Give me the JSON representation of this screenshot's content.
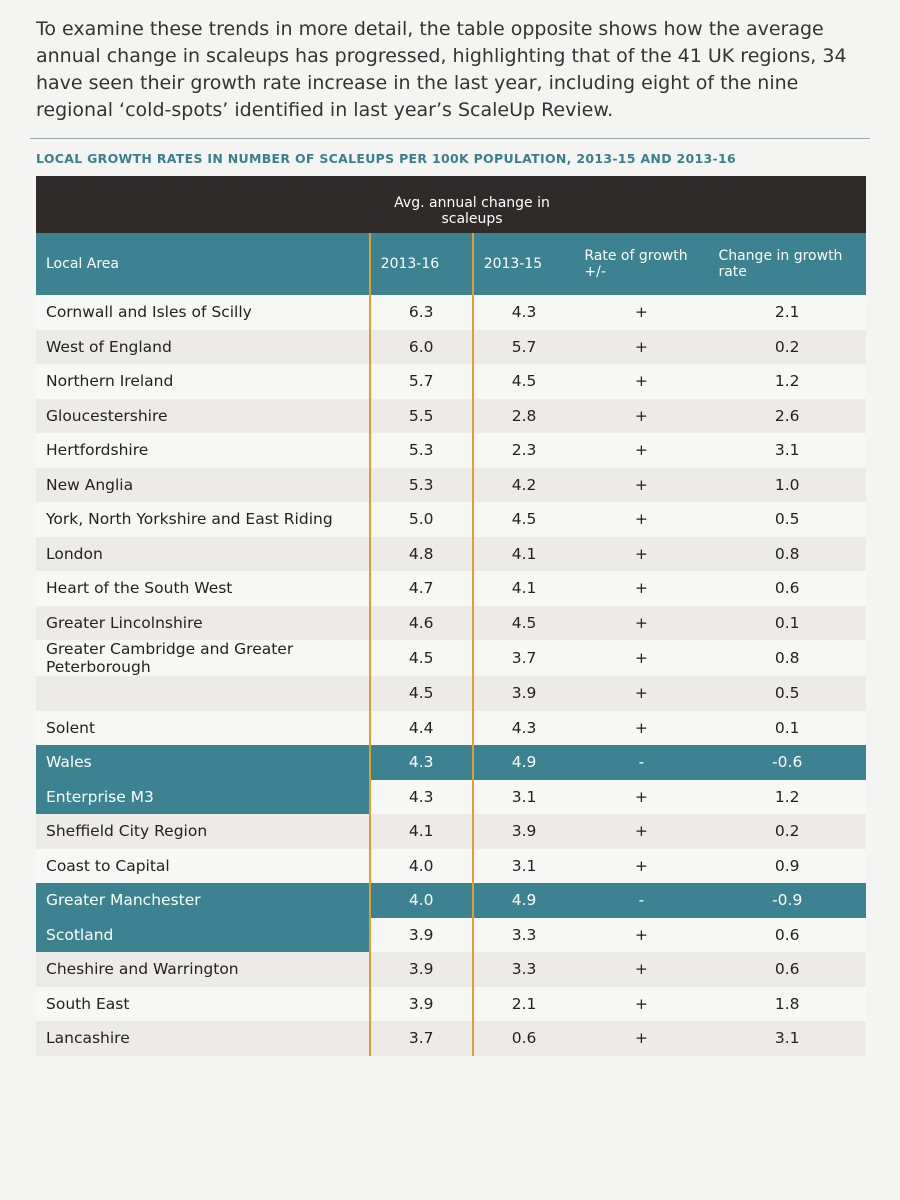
{
  "intro": "To examine these trends in more detail, the table opposite shows how the average annual change in scaleups has progressed, highlighting that of the 41 UK regions, 34 have seen their growth rate increase in the last year, including eight of the nine regional ‘cold-spots’ identified in last year’s ScaleUp Review.",
  "table": {
    "title": "LOCAL GROWTH RATES IN NUMBER OF SCALEUPS PER 100K POPULATION, 2013-15 AND 2013-16",
    "group_header": "Avg. annual change in scaleups",
    "columns": [
      "Local Area",
      "2013-16",
      "2013-15",
      "Rate of growth +/-",
      "Change in growth rate"
    ],
    "rows": [
      {
        "cells": [
          "Cornwall and Isles of Scilly",
          "6.3",
          "4.3",
          "+",
          "2.1"
        ]
      },
      {
        "cells": [
          "West of England",
          "6.0",
          "5.7",
          "+",
          "0.2"
        ]
      },
      {
        "cells": [
          "Northern Ireland",
          "5.7",
          "4.5",
          "+",
          "1.2"
        ]
      },
      {
        "cells": [
          "Gloucestershire",
          "5.5",
          "2.8",
          "+",
          "2.6"
        ]
      },
      {
        "cells": [
          "Hertfordshire",
          "5.3",
          "2.3",
          "+",
          "3.1"
        ]
      },
      {
        "cells": [
          "New Anglia",
          "5.3",
          "4.2",
          "+",
          "1.0"
        ]
      },
      {
        "cells": [
          "York, North Yorkshire and East Riding",
          "5.0",
          "4.5",
          "+",
          "0.5"
        ]
      },
      {
        "cells": [
          "London",
          "4.8",
          "4.1",
          "+",
          "0.8"
        ]
      },
      {
        "cells": [
          "Heart of the South West",
          "4.7",
          "4.1",
          "+",
          "0.6"
        ]
      },
      {
        "cells": [
          "Greater Lincolnshire",
          "4.6",
          "4.5",
          "+",
          "0.1"
        ]
      },
      {
        "cells": [
          "Greater Cambridge and Greater Peterborough",
          "4.5",
          "3.7",
          "+",
          "0.8"
        ]
      },
      {
        "cells": [
          null,
          "4.5",
          "3.9",
          "+",
          "0.5"
        ]
      },
      {
        "cells": [
          "Solent",
          "4.4",
          "4.3",
          "+",
          "0.1"
        ]
      },
      {
        "cells": [
          "Wales",
          "4.3",
          "4.9",
          "-",
          "-0.6"
        ],
        "highlight": "row"
      },
      {
        "cells": [
          "Enterprise M3",
          "4.3",
          "3.1",
          "+",
          "1.2"
        ],
        "highlight": "name"
      },
      {
        "cells": [
          "Sheffield City Region",
          "4.1",
          "3.9",
          "+",
          "0.2"
        ]
      },
      {
        "cells": [
          "Coast to Capital",
          "4.0",
          "3.1",
          "+",
          "0.9"
        ]
      },
      {
        "cells": [
          "Greater Manchester",
          "4.0",
          "4.9",
          "-",
          "-0.9"
        ],
        "highlight": "row"
      },
      {
        "cells": [
          "Scotland",
          "3.9",
          "3.3",
          "+",
          "0.6"
        ],
        "highlight": "name"
      },
      {
        "cells": [
          "Cheshire and Warrington",
          "3.9",
          "3.3",
          "+",
          "0.6"
        ]
      },
      {
        "cells": [
          "South East",
          "3.9",
          "2.1",
          "+",
          "1.8"
        ]
      },
      {
        "cells": [
          "Lancashire",
          "3.7",
          "0.6",
          "+",
          "3.1"
        ]
      }
    ]
  }
}
